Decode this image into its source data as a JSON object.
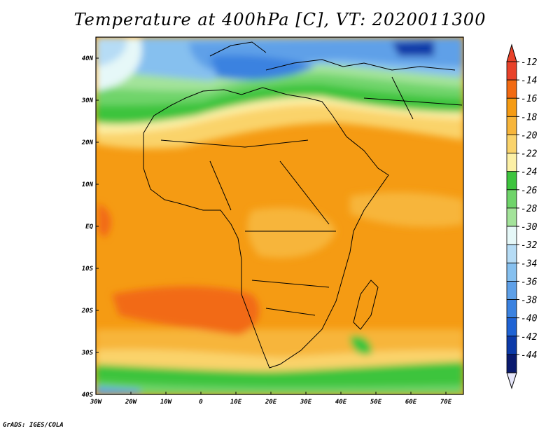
{
  "title": "Temperature at 400hPa [C], VT: 2020011300",
  "credit": "GrADS: IGES/COLA",
  "map": {
    "lon_labels": [
      "30W",
      "20W",
      "10W",
      "0",
      "10E",
      "20E",
      "30E",
      "40E",
      "50E",
      "60E",
      "70E"
    ],
    "lat_labels": [
      "40N",
      "30N",
      "20N",
      "10N",
      "EQ",
      "10S",
      "20S",
      "30S",
      "40S"
    ],
    "lon_range": [
      -30,
      75
    ],
    "lat_range": [
      -40,
      45
    ]
  },
  "colorbar": {
    "levels": [
      "-12",
      "-14",
      "-16",
      "-18",
      "-20",
      "-22",
      "-24",
      "-26",
      "-28",
      "-30",
      "-32",
      "-34",
      "-36",
      "-38",
      "-40",
      "-42",
      "-44"
    ],
    "colors": [
      "#e8422a",
      "#f26a12",
      "#f59b13",
      "#f7b53a",
      "#fad36b",
      "#fcf0a6",
      "#3ec43e",
      "#6fd46a",
      "#a3e39a",
      "#e6f8f8",
      "#b6dcf5",
      "#86c0ef",
      "#5ea0e8",
      "#3b82e0",
      "#1f63d4",
      "#0c3aa8",
      "#0a1a6e"
    ],
    "top_arrow_color": "#e8422a",
    "bottom_arrow_color": "#e6e6fa"
  }
}
